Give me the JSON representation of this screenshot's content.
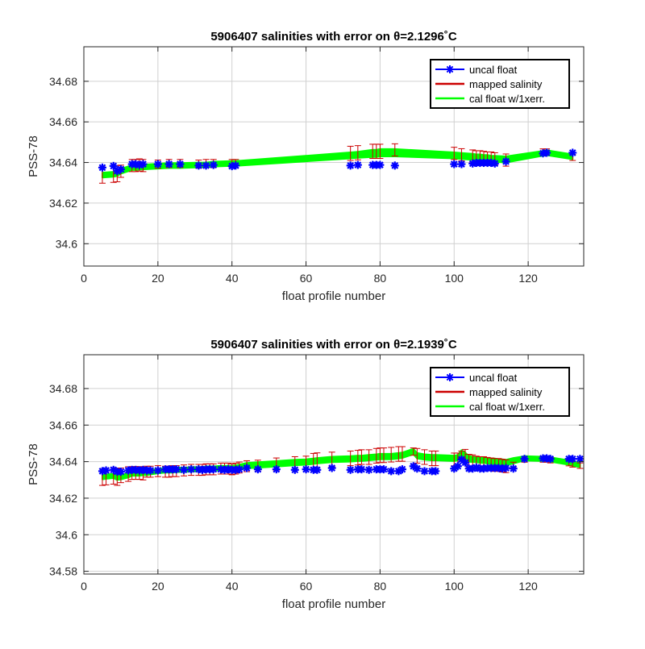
{
  "chart_data": [
    {
      "type": "line",
      "title": "5906407 salinities with error on θ=2.1296˚C",
      "xlabel": "float profile number",
      "ylabel": "PSS-78",
      "xlim": [
        0,
        135
      ],
      "ylim": [
        34.589,
        34.697
      ],
      "xticks": [
        0,
        20,
        40,
        60,
        80,
        100,
        120
      ],
      "yticks": [
        34.6,
        34.62,
        34.64,
        34.66,
        34.68
      ],
      "grid": true,
      "legend": {
        "position": "top-right",
        "entries": [
          "uncal float",
          "mapped salinity",
          "cal float w/1xerr."
        ]
      },
      "colors": {
        "uncal": "#0000ff",
        "mapped": "#cc0000",
        "cal": "#00ff00"
      },
      "series": [
        {
          "name": "uncal float",
          "x": [
            5,
            8,
            9,
            10,
            13,
            14,
            15,
            16,
            20,
            23,
            26,
            31,
            33,
            35,
            40,
            41,
            72,
            74,
            78,
            79,
            80,
            84,
            100,
            102,
            105,
            106,
            107,
            108,
            109,
            110,
            111,
            114,
            124,
            125,
            132
          ],
          "values": [
            34.6375,
            34.6383,
            34.6358,
            34.6367,
            34.6392,
            34.6392,
            34.6388,
            34.6392,
            34.6392,
            34.6392,
            34.6392,
            34.6385,
            34.6385,
            34.6388,
            34.6382,
            34.6385,
            34.6385,
            34.6388,
            34.6388,
            34.6388,
            34.6388,
            34.6385,
            34.6392,
            34.6392,
            34.6395,
            34.6398,
            34.6398,
            34.6398,
            34.6398,
            34.6398,
            34.6395,
            34.6405,
            34.6445,
            34.6448,
            34.6448
          ]
        },
        {
          "name": "mapped salinity",
          "x": [
            5,
            8,
            9,
            10,
            13,
            14,
            15,
            16,
            20,
            23,
            26,
            31,
            33,
            35,
            40,
            41,
            72,
            74,
            78,
            79,
            80,
            84,
            100,
            102,
            105,
            106,
            107,
            108,
            109,
            110,
            111,
            114,
            124,
            125,
            132
          ],
          "values": [
            34.6338,
            34.6342,
            34.6345,
            34.6357,
            34.6385,
            34.6385,
            34.6388,
            34.6385,
            34.6392,
            34.6395,
            34.6395,
            34.6392,
            34.6395,
            34.6395,
            34.6395,
            34.6395,
            34.6445,
            34.6448,
            34.6455,
            34.6455,
            34.6455,
            34.6462,
            34.6445,
            34.6438,
            34.6432,
            34.6428,
            34.6428,
            34.6425,
            34.6422,
            34.6422,
            34.6418,
            34.6412,
            34.6452,
            34.6452,
            34.6425
          ],
          "errors": [
            0.004,
            0.004,
            0.004,
            0.003,
            0.003,
            0.003,
            0.003,
            0.003,
            0.002,
            0.002,
            0.002,
            0.002,
            0.002,
            0.002,
            0.002,
            0.002,
            0.0035,
            0.0035,
            0.0035,
            0.0035,
            0.0035,
            0.003,
            0.003,
            0.003,
            0.003,
            0.003,
            0.003,
            0.003,
            0.003,
            0.003,
            0.003,
            0.003,
            0.0015,
            0.0015,
            0.0015
          ]
        },
        {
          "name": "cal float w/1xerr.",
          "x": [
            5,
            8,
            9,
            10,
            13,
            14,
            15,
            16,
            20,
            23,
            26,
            31,
            33,
            35,
            40,
            41,
            72,
            74,
            78,
            79,
            80,
            84,
            100,
            102,
            105,
            106,
            107,
            108,
            109,
            110,
            111,
            114,
            124,
            125,
            132
          ],
          "values": [
            34.6338,
            34.6342,
            34.6345,
            34.6357,
            34.6375,
            34.6375,
            34.6378,
            34.6378,
            34.6382,
            34.6385,
            34.6385,
            34.6388,
            34.6388,
            34.6392,
            34.6395,
            34.6395,
            34.6435,
            34.6438,
            34.6445,
            34.6445,
            34.6448,
            34.6448,
            34.6435,
            34.6432,
            34.6428,
            34.6425,
            34.6425,
            34.6422,
            34.6422,
            34.6418,
            34.6418,
            34.6415,
            34.6445,
            34.6448,
            34.6428
          ],
          "errors": [
            0.0012,
            0.0012,
            0.0012,
            0.0012,
            0.0012,
            0.0012,
            0.0012,
            0.0012,
            0.0012,
            0.0012,
            0.0012,
            0.0012,
            0.0012,
            0.0012,
            0.0012,
            0.0012,
            0.0015,
            0.0015,
            0.0018,
            0.0018,
            0.0018,
            0.0018,
            0.0015,
            0.0015,
            0.0015,
            0.0015,
            0.0015,
            0.0015,
            0.0015,
            0.0015,
            0.0015,
            0.0015,
            0.0012,
            0.0012,
            0.0012
          ]
        }
      ]
    },
    {
      "type": "line",
      "title": "5906407 salinities with error on θ=2.1939˚C",
      "xlabel": "float profile number",
      "ylabel": "PSS-78",
      "xlim": [
        0,
        135
      ],
      "ylim": [
        34.5785,
        34.6985
      ],
      "xticks": [
        0,
        20,
        40,
        60,
        80,
        100,
        120
      ],
      "yticks": [
        34.58,
        34.6,
        34.62,
        34.64,
        34.66,
        34.68
      ],
      "grid": true,
      "legend": {
        "position": "top-right",
        "entries": [
          "uncal float",
          "mapped salinity",
          "cal float w/1xerr."
        ]
      },
      "colors": {
        "uncal": "#0000ff",
        "mapped": "#cc0000",
        "cal": "#00ff00"
      },
      "series": [
        {
          "name": "uncal float",
          "x": [
            5,
            6,
            8,
            9,
            10,
            12,
            13,
            14,
            15,
            16,
            17,
            18,
            20,
            22,
            23,
            24,
            25,
            27,
            29,
            31,
            32,
            33,
            34,
            35,
            37,
            38,
            39,
            40,
            41,
            42,
            44,
            47,
            52,
            57,
            60,
            62,
            63,
            67,
            72,
            74,
            75,
            77,
            79,
            80,
            81,
            83,
            85,
            86,
            89,
            90,
            92,
            94,
            95,
            100,
            101,
            102,
            103,
            104,
            105,
            106,
            107,
            108,
            109,
            110,
            111,
            112,
            113,
            114,
            116,
            119,
            124,
            125,
            126,
            131,
            132,
            134
          ],
          "values": [
            34.6348,
            34.6352,
            34.6355,
            34.6345,
            34.6345,
            34.6352,
            34.6355,
            34.6355,
            34.6352,
            34.6355,
            34.6352,
            34.6352,
            34.6352,
            34.6358,
            34.6358,
            34.6358,
            34.6358,
            34.6355,
            34.6358,
            34.6358,
            34.6355,
            34.6358,
            34.6358,
            34.6358,
            34.6358,
            34.6355,
            34.6358,
            34.6355,
            34.6355,
            34.6358,
            34.6365,
            34.6358,
            34.6358,
            34.6355,
            34.6358,
            34.6355,
            34.6355,
            34.6365,
            34.6355,
            34.6358,
            34.6358,
            34.6355,
            34.6358,
            34.6358,
            34.6358,
            34.6348,
            34.6348,
            34.6358,
            34.6375,
            34.6362,
            34.6348,
            34.6348,
            34.6348,
            34.6362,
            34.6375,
            34.6412,
            34.6395,
            34.6362,
            34.6362,
            34.6368,
            34.6362,
            34.6362,
            34.6365,
            34.6365,
            34.6365,
            34.6365,
            34.6362,
            34.6365,
            34.6362,
            34.6415,
            34.6418,
            34.6418,
            34.6415,
            34.6415,
            34.6415,
            34.6415
          ]
        },
        {
          "name": "mapped salinity",
          "x": [
            5,
            6,
            8,
            9,
            10,
            12,
            13,
            14,
            15,
            16,
            17,
            18,
            20,
            22,
            23,
            24,
            25,
            27,
            29,
            31,
            32,
            33,
            34,
            35,
            37,
            38,
            39,
            40,
            41,
            42,
            44,
            47,
            52,
            57,
            60,
            62,
            63,
            67,
            72,
            74,
            75,
            77,
            79,
            80,
            81,
            83,
            85,
            86,
            89,
            90,
            92,
            94,
            95,
            100,
            101,
            102,
            103,
            104,
            105,
            106,
            107,
            108,
            109,
            110,
            111,
            112,
            113,
            114,
            116,
            119,
            124,
            125,
            126,
            131,
            132,
            134
          ],
          "values": [
            34.6315,
            34.6318,
            34.6322,
            34.6315,
            34.6325,
            34.6332,
            34.6338,
            34.6338,
            34.6338,
            34.6335,
            34.6345,
            34.6345,
            34.6348,
            34.6345,
            34.6345,
            34.6348,
            34.6348,
            34.6352,
            34.6355,
            34.6355,
            34.6355,
            34.6358,
            34.6358,
            34.6358,
            34.6362,
            34.6362,
            34.6362,
            34.6358,
            34.6362,
            34.6368,
            34.6375,
            34.6378,
            34.6385,
            34.6392,
            34.6395,
            34.6405,
            34.6408,
            34.6412,
            34.6418,
            34.6422,
            34.6425,
            34.6425,
            34.6432,
            34.6435,
            34.6435,
            34.6438,
            34.6442,
            34.6442,
            34.6455,
            34.6432,
            34.6425,
            34.6418,
            34.6418,
            34.6412,
            34.6412,
            34.6438,
            34.6432,
            34.6405,
            34.6402,
            34.6395,
            34.6392,
            34.6392,
            34.6388,
            34.6385,
            34.6382,
            34.6382,
            34.6378,
            34.6375,
            34.6382,
            34.6412,
            34.6412,
            34.6412,
            34.6408,
            34.6392,
            34.6385,
            34.6378
          ],
          "errors": [
            0.0045,
            0.0045,
            0.0045,
            0.0045,
            0.004,
            0.004,
            0.0035,
            0.0035,
            0.0035,
            0.0035,
            0.003,
            0.003,
            0.003,
            0.003,
            0.003,
            0.003,
            0.003,
            0.003,
            0.003,
            0.003,
            0.003,
            0.003,
            0.003,
            0.003,
            0.003,
            0.003,
            0.003,
            0.003,
            0.003,
            0.003,
            0.003,
            0.003,
            0.0035,
            0.0035,
            0.0035,
            0.004,
            0.004,
            0.004,
            0.004,
            0.004,
            0.004,
            0.004,
            0.004,
            0.004,
            0.004,
            0.004,
            0.004,
            0.004,
            0.002,
            0.004,
            0.004,
            0.004,
            0.004,
            0.0035,
            0.0035,
            0.002,
            0.0035,
            0.0035,
            0.0035,
            0.0035,
            0.0035,
            0.0035,
            0.0035,
            0.0035,
            0.0035,
            0.0035,
            0.0035,
            0.0035,
            0.0015,
            0.0015,
            0.0015,
            0.0015,
            0.0015,
            0.0015,
            0.0015,
            0.0015
          ]
        },
        {
          "name": "cal float w/1xerr.",
          "x": [
            5,
            6,
            8,
            9,
            10,
            12,
            13,
            14,
            15,
            16,
            17,
            18,
            20,
            22,
            23,
            24,
            25,
            27,
            29,
            31,
            32,
            33,
            34,
            35,
            37,
            38,
            39,
            40,
            41,
            42,
            44,
            47,
            52,
            57,
            60,
            62,
            63,
            67,
            72,
            74,
            75,
            77,
            79,
            80,
            81,
            83,
            85,
            86,
            89,
            90,
            92,
            94,
            95,
            100,
            101,
            102,
            103,
            104,
            105,
            106,
            107,
            108,
            109,
            110,
            111,
            112,
            113,
            114,
            116,
            119,
            124,
            125,
            126,
            131,
            132,
            134
          ],
          "values": [
            34.6315,
            34.6318,
            34.6322,
            34.6312,
            34.6315,
            34.6325,
            34.6335,
            34.6335,
            34.6335,
            34.6338,
            34.6338,
            34.6342,
            34.6348,
            34.6352,
            34.6352,
            34.6352,
            34.6355,
            34.6355,
            34.6358,
            34.6358,
            34.6358,
            34.6362,
            34.6362,
            34.6362,
            34.6365,
            34.6365,
            34.6365,
            34.6365,
            34.6368,
            34.6372,
            34.6378,
            34.6382,
            34.6388,
            34.6395,
            34.6398,
            34.6402,
            34.6405,
            34.6412,
            34.6415,
            34.6418,
            34.6418,
            34.6422,
            34.6425,
            34.6428,
            34.6428,
            34.6428,
            34.6432,
            34.6435,
            34.6455,
            34.6432,
            34.6425,
            34.6422,
            34.6422,
            34.6418,
            34.6422,
            34.6448,
            34.6435,
            34.6415,
            34.6412,
            34.6412,
            34.6408,
            34.6408,
            34.6405,
            34.6402,
            34.6402,
            34.6398,
            34.6398,
            34.6395,
            34.6405,
            34.6418,
            34.6415,
            34.6415,
            34.6412,
            34.6395,
            34.6388,
            34.6382
          ],
          "errors": [
            0.0012,
            0.0012,
            0.0012,
            0.0012,
            0.0012,
            0.0012,
            0.0012,
            0.0012,
            0.0012,
            0.0012,
            0.0012,
            0.0012,
            0.0012,
            0.0012,
            0.0012,
            0.0012,
            0.0012,
            0.0012,
            0.0012,
            0.0012,
            0.0012,
            0.0012,
            0.0012,
            0.0012,
            0.0012,
            0.0012,
            0.0012,
            0.0012,
            0.0012,
            0.0012,
            0.0015,
            0.0015,
            0.0015,
            0.0015,
            0.0015,
            0.0015,
            0.0015,
            0.0015,
            0.0015,
            0.0015,
            0.0015,
            0.0015,
            0.0015,
            0.0015,
            0.0015,
            0.0015,
            0.0015,
            0.0015,
            0.0015,
            0.0015,
            0.0015,
            0.0015,
            0.0015,
            0.0015,
            0.0015,
            0.0015,
            0.0015,
            0.0015,
            0.0015,
            0.0015,
            0.0015,
            0.0015,
            0.0015,
            0.0015,
            0.0015,
            0.0015,
            0.0015,
            0.0015,
            0.0015,
            0.0012,
            0.0012,
            0.0012,
            0.0012,
            0.0012,
            0.0012,
            0.0012
          ]
        }
      ]
    }
  ]
}
